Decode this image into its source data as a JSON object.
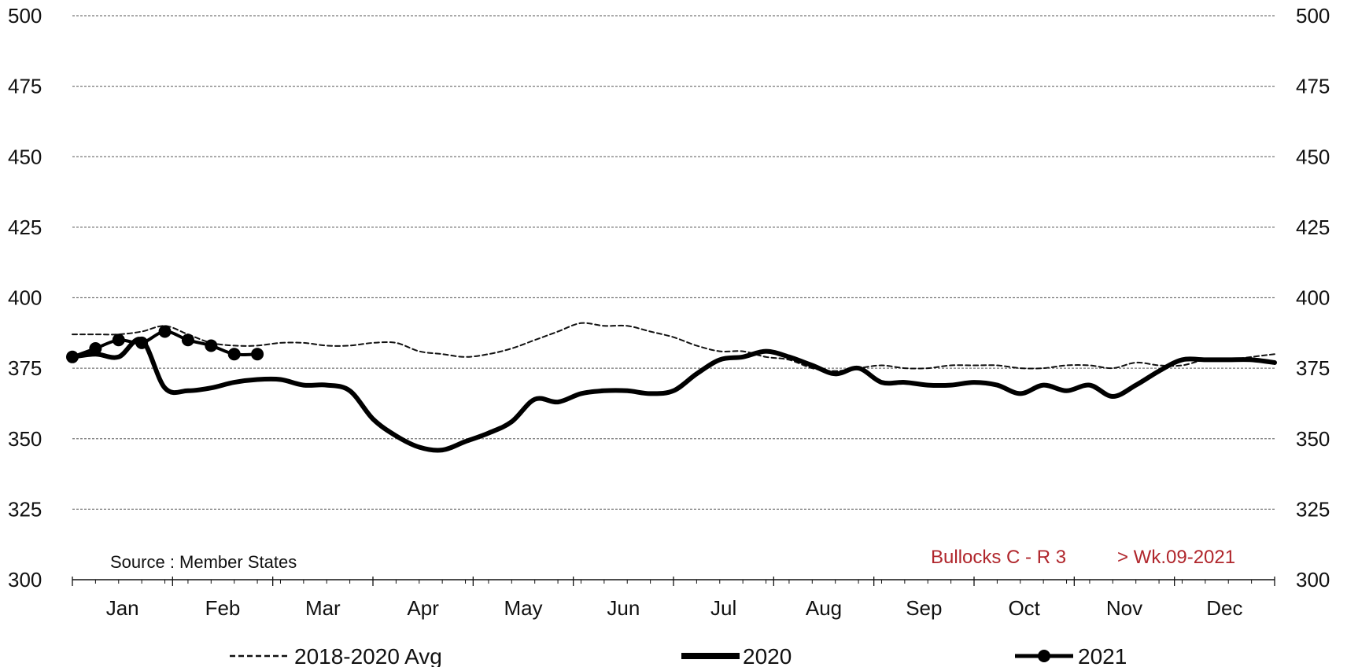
{
  "chart_data": {
    "type": "line",
    "ylim": [
      300,
      500
    ],
    "yticks": [
      "500",
      "475",
      "450",
      "425",
      "400",
      "375",
      "350",
      "325",
      "300"
    ],
    "months": [
      "Jan",
      "Feb",
      "Mar",
      "Apr",
      "May",
      "Jun",
      "Jul",
      "Aug",
      "Sep",
      "Oct",
      "Nov",
      "Dec"
    ],
    "source": "Source : Member States",
    "note_left": "Bullocks C - R 3",
    "note_right": "> Wk.09-2021",
    "grid": true,
    "legend_position": "bottom",
    "series": [
      {
        "name": "2018-2020 Avg",
        "style": "dashed",
        "color": "#111111",
        "weeks": [
          1,
          2,
          3,
          4,
          5,
          6,
          7,
          8,
          9,
          10,
          11,
          12,
          13,
          14,
          15,
          16,
          17,
          18,
          19,
          20,
          21,
          22,
          23,
          24,
          25,
          26,
          27,
          28,
          29,
          30,
          31,
          32,
          33,
          34,
          35,
          36,
          37,
          38,
          39,
          40,
          41,
          42,
          43,
          44,
          45,
          46,
          47,
          48,
          49,
          50,
          51,
          52,
          53
        ],
        "values": [
          387,
          387,
          387,
          388,
          390,
          387,
          384,
          383,
          383,
          384,
          384,
          383,
          383,
          384,
          384,
          381,
          380,
          379,
          380,
          382,
          385,
          388,
          391,
          390,
          390,
          388,
          386,
          383,
          381,
          381,
          379,
          378,
          375,
          374,
          375,
          376,
          375,
          375,
          376,
          376,
          376,
          375,
          375,
          376,
          376,
          375,
          377,
          376,
          376,
          378,
          378,
          379,
          380
        ]
      },
      {
        "name": "2020",
        "style": "bold",
        "color": "#000000",
        "weeks": [
          1,
          2,
          3,
          4,
          5,
          6,
          7,
          8,
          9,
          10,
          11,
          12,
          13,
          14,
          15,
          16,
          17,
          18,
          19,
          20,
          21,
          22,
          23,
          24,
          25,
          26,
          27,
          28,
          29,
          30,
          31,
          32,
          33,
          34,
          35,
          36,
          37,
          38,
          39,
          40,
          41,
          42,
          43,
          44,
          45,
          46,
          47,
          48,
          49,
          50,
          51,
          52,
          53
        ],
        "values": [
          379,
          380,
          379,
          385,
          368,
          367,
          368,
          370,
          371,
          371,
          369,
          369,
          367,
          357,
          351,
          347,
          346,
          349,
          352,
          356,
          364,
          363,
          366,
          367,
          367,
          366,
          367,
          373,
          378,
          379,
          381,
          379,
          376,
          373,
          375,
          370,
          370,
          369,
          369,
          370,
          369,
          366,
          369,
          367,
          369,
          365,
          369,
          374,
          378,
          378,
          378,
          378,
          377
        ]
      },
      {
        "name": "2021",
        "style": "markers",
        "color": "#000000",
        "weeks": [
          1,
          2,
          3,
          4,
          5,
          6,
          7,
          8,
          9
        ],
        "values": [
          379,
          382,
          385,
          384,
          388,
          385,
          383,
          380,
          380
        ]
      }
    ]
  }
}
